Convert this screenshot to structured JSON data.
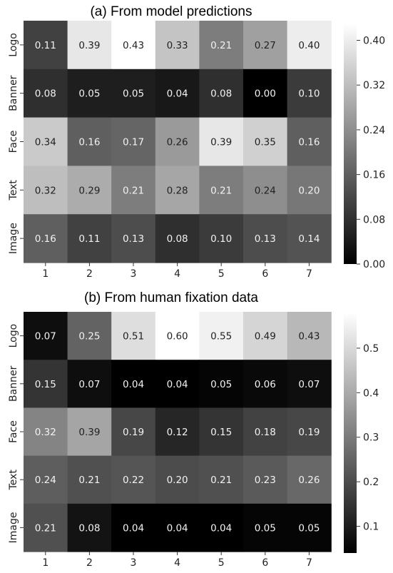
{
  "chart_data": [
    {
      "type": "heatmap",
      "title": "(a) From model predictions",
      "rows": [
        "Logo",
        "Banner",
        "Face",
        "Text",
        "Image"
      ],
      "cols": [
        "1",
        "2",
        "3",
        "4",
        "5",
        "6",
        "7"
      ],
      "values": [
        [
          0.11,
          0.39,
          0.43,
          0.33,
          0.21,
          0.27,
          0.4
        ],
        [
          0.08,
          0.05,
          0.05,
          0.04,
          0.08,
          0.0,
          0.1
        ],
        [
          0.34,
          0.16,
          0.17,
          0.26,
          0.39,
          0.35,
          0.16
        ],
        [
          0.32,
          0.29,
          0.21,
          0.28,
          0.21,
          0.24,
          0.2
        ],
        [
          0.16,
          0.11,
          0.13,
          0.08,
          0.1,
          0.13,
          0.14
        ]
      ],
      "labels": [
        [
          "0.11",
          "0.39",
          "0.43",
          "0.33",
          "0.21",
          "0.27",
          "0.40"
        ],
        [
          "0.08",
          "0.05",
          "0.05",
          "0.04",
          "0.08",
          "0.00",
          "0.10"
        ],
        [
          "0.34",
          "0.16",
          "0.17",
          "0.26",
          "0.39",
          "0.35",
          "0.16"
        ],
        [
          "0.32",
          "0.29",
          "0.21",
          "0.28",
          "0.21",
          "0.24",
          "0.20"
        ],
        [
          "0.16",
          "0.11",
          "0.13",
          "0.08",
          "0.10",
          "0.13",
          "0.14"
        ]
      ],
      "colormap": "gray",
      "vmin": 0.0,
      "vmax": 0.43,
      "colorbar_ticks": [
        0.0,
        0.08,
        0.16,
        0.24,
        0.32,
        0.4
      ],
      "colorbar_tick_labels": [
        "0.00",
        "0.08",
        "0.16",
        "0.24",
        "0.32",
        "0.40"
      ]
    },
    {
      "type": "heatmap",
      "title": "(b) From human fixation data",
      "rows": [
        "Logo",
        "Banner",
        "Face",
        "Text",
        "Image"
      ],
      "cols": [
        "1",
        "2",
        "3",
        "4",
        "5",
        "6",
        "7"
      ],
      "values": [
        [
          0.07,
          0.25,
          0.51,
          0.6,
          0.55,
          0.49,
          0.43
        ],
        [
          0.15,
          0.07,
          0.04,
          0.04,
          0.05,
          0.06,
          0.07
        ],
        [
          0.32,
          0.39,
          0.19,
          0.12,
          0.15,
          0.18,
          0.19
        ],
        [
          0.24,
          0.21,
          0.22,
          0.2,
          0.21,
          0.23,
          0.26
        ],
        [
          0.21,
          0.08,
          0.04,
          0.04,
          0.04,
          0.05,
          0.05
        ]
      ],
      "labels": [
        [
          "0.07",
          "0.25",
          "0.51",
          "0.60",
          "0.55",
          "0.49",
          "0.43"
        ],
        [
          "0.15",
          "0.07",
          "0.04",
          "0.04",
          "0.05",
          "0.06",
          "0.07"
        ],
        [
          "0.32",
          "0.39",
          "0.19",
          "0.12",
          "0.15",
          "0.18",
          "0.19"
        ],
        [
          "0.24",
          "0.21",
          "0.22",
          "0.20",
          "0.21",
          "0.23",
          "0.26"
        ],
        [
          "0.21",
          "0.08",
          "0.04",
          "0.04",
          "0.04",
          "0.05",
          "0.05"
        ]
      ],
      "colormap": "gray",
      "vmin": 0.04,
      "vmax": 0.58,
      "colorbar_ticks": [
        0.1,
        0.2,
        0.3,
        0.4,
        0.5
      ],
      "colorbar_tick_labels": [
        "0.1",
        "0.2",
        "0.3",
        "0.4",
        "0.5"
      ]
    }
  ]
}
